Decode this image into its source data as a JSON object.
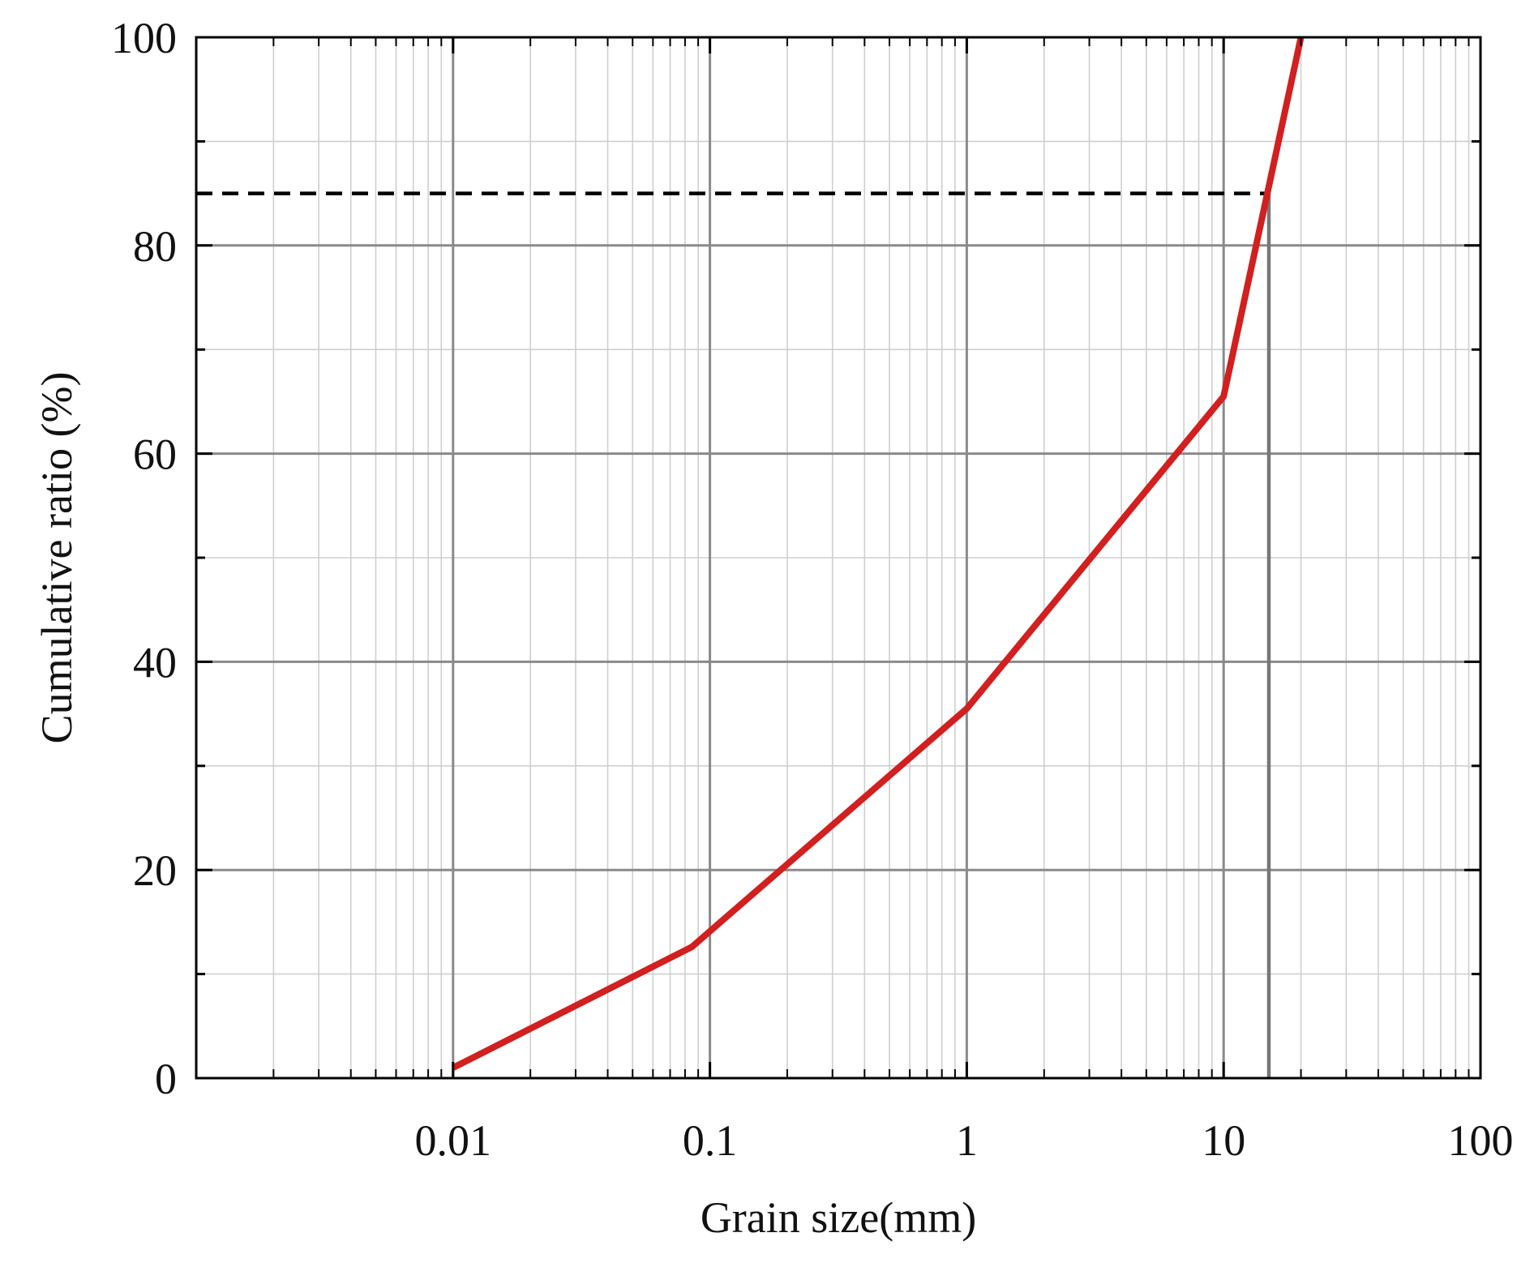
{
  "chart_data": {
    "type": "line",
    "title": "",
    "xlabel": "Grain size(mm)",
    "ylabel": "Cumulative ratio (%)",
    "x_scale": "log",
    "xlim": [
      0.001,
      100
    ],
    "ylim": [
      0,
      100
    ],
    "x_ticks": [
      0.01,
      0.1,
      1,
      10,
      100
    ],
    "x_tick_labels": [
      "0.01",
      "0.1",
      "1",
      "10",
      "100"
    ],
    "y_ticks": [
      0,
      20,
      40,
      60,
      80,
      100
    ],
    "y_tick_labels": [
      "0",
      "20",
      "40",
      "60",
      "80",
      "100"
    ],
    "grid": true,
    "series": [
      {
        "color": "#d21f1f",
        "x": [
          0.01,
          0.085,
          1,
          10,
          20
        ],
        "y": [
          1,
          12.6,
          35.5,
          65.5,
          100
        ]
      }
    ],
    "reference_lines": [
      {
        "orientation": "horizontal",
        "style": "dashed",
        "color": "#000000",
        "y": 85,
        "x_from": 0.001,
        "x_to": 15
      },
      {
        "orientation": "vertical",
        "style": "solid",
        "color": "#777777",
        "x": 15,
        "y_from": 0,
        "y_to": 85
      }
    ],
    "colors": {
      "frame": "#000000",
      "major_grid": "#8a8a8a",
      "minor_grid": "#cfcfcf"
    }
  }
}
